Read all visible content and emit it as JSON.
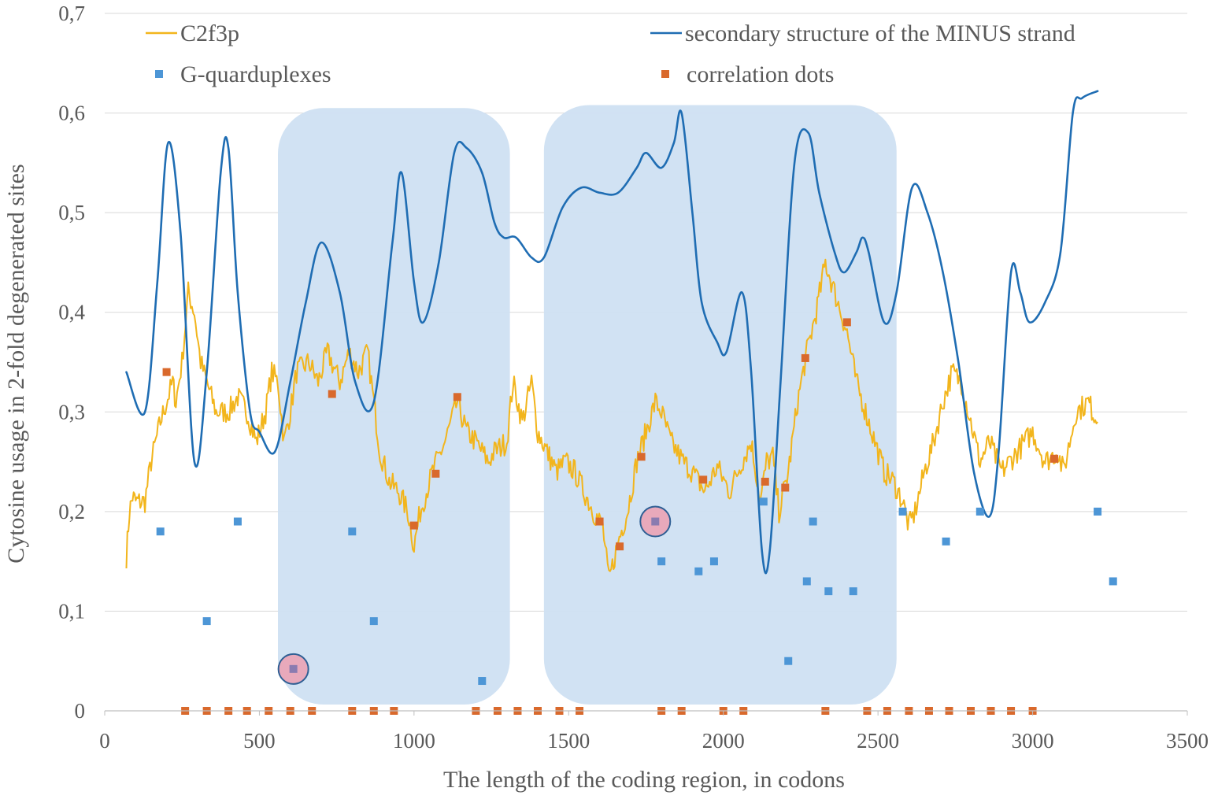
{
  "chart_data": {
    "type": "line",
    "title": "",
    "xlabel": "The length of the coding region, in codons",
    "ylabel": "Cytosine usage in 2-fold degenerated sites",
    "xlim": [
      0,
      3500
    ],
    "ylim": [
      0,
      0.7
    ],
    "x_ticks": [
      0,
      500,
      1000,
      1500,
      2000,
      2500,
      3000,
      3500
    ],
    "x_tick_labels": [
      "0",
      "500",
      "1000",
      "1500",
      "2000",
      "2500",
      "3000",
      "3500"
    ],
    "y_ticks": [
      0,
      0.1,
      0.2,
      0.3,
      0.4,
      0.5,
      0.6,
      0.7
    ],
    "y_tick_labels": [
      "0",
      "0,1",
      "0,2",
      "0,3",
      "0,4",
      "0,5",
      "0,6",
      "0,7"
    ],
    "grid": "horizontal",
    "legend_position": "top",
    "colors": {
      "c2f3p": "#f2b51c",
      "minus_strand": "#1f6db3",
      "gquad": "#4d96d6",
      "corr": "#d9692c",
      "region_fill": "#cfe0f2",
      "highlight_fill": "#e8a9bb",
      "highlight_stroke": "#2f5f94",
      "grid": "#d9d9d9",
      "axis": "#bfbfbf"
    },
    "legend": [
      {
        "key": "c2f3p",
        "label": "C2f3p",
        "style": "line"
      },
      {
        "key": "minus_strand",
        "label": "secondary structure of the MINUS strand",
        "style": "line"
      },
      {
        "key": "gquad",
        "label": "G-quarduplexes",
        "style": "marker"
      },
      {
        "key": "corr",
        "label": "correlation dots",
        "style": "marker"
      }
    ],
    "shaded_regions": [
      {
        "x0": 560,
        "x1": 1310,
        "y0": 0,
        "y1": 0.605
      },
      {
        "x0": 1420,
        "x1": 2560,
        "y0": 0,
        "y1": 0.608
      }
    ],
    "series": [
      {
        "name": "C2f3p",
        "type": "line",
        "noise": 0.012,
        "points": [
          [
            70,
            0.155
          ],
          [
            80,
            0.2
          ],
          [
            90,
            0.215
          ],
          [
            100,
            0.21
          ],
          [
            130,
            0.21
          ],
          [
            150,
            0.25
          ],
          [
            180,
            0.29
          ],
          [
            200,
            0.31
          ],
          [
            220,
            0.33
          ],
          [
            230,
            0.31
          ],
          [
            250,
            0.35
          ],
          [
            270,
            0.42
          ],
          [
            290,
            0.4
          ],
          [
            310,
            0.35
          ],
          [
            330,
            0.33
          ],
          [
            360,
            0.3
          ],
          [
            400,
            0.3
          ],
          [
            430,
            0.315
          ],
          [
            460,
            0.3
          ],
          [
            490,
            0.27
          ],
          [
            520,
            0.3
          ],
          [
            540,
            0.34
          ],
          [
            560,
            0.33
          ],
          [
            580,
            0.27
          ],
          [
            600,
            0.3
          ],
          [
            620,
            0.34
          ],
          [
            660,
            0.35
          ],
          [
            690,
            0.33
          ],
          [
            720,
            0.36
          ],
          [
            760,
            0.33
          ],
          [
            790,
            0.36
          ],
          [
            820,
            0.34
          ],
          [
            850,
            0.36
          ],
          [
            870,
            0.31
          ],
          [
            890,
            0.26
          ],
          [
            920,
            0.23
          ],
          [
            950,
            0.22
          ],
          [
            980,
            0.2
          ],
          [
            1000,
            0.165
          ],
          [
            1020,
            0.2
          ],
          [
            1060,
            0.24
          ],
          [
            1100,
            0.27
          ],
          [
            1140,
            0.31
          ],
          [
            1170,
            0.28
          ],
          [
            1200,
            0.27
          ],
          [
            1240,
            0.25
          ],
          [
            1260,
            0.26
          ],
          [
            1300,
            0.27
          ],
          [
            1320,
            0.33
          ],
          [
            1350,
            0.29
          ],
          [
            1380,
            0.33
          ],
          [
            1400,
            0.28
          ],
          [
            1430,
            0.26
          ],
          [
            1460,
            0.24
          ],
          [
            1490,
            0.25
          ],
          [
            1520,
            0.24
          ],
          [
            1550,
            0.22
          ],
          [
            1580,
            0.2
          ],
          [
            1610,
            0.185
          ],
          [
            1630,
            0.13
          ],
          [
            1660,
            0.17
          ],
          [
            1690,
            0.2
          ],
          [
            1720,
            0.25
          ],
          [
            1750,
            0.28
          ],
          [
            1780,
            0.31
          ],
          [
            1800,
            0.3
          ],
          [
            1830,
            0.27
          ],
          [
            1870,
            0.25
          ],
          [
            1900,
            0.24
          ],
          [
            1940,
            0.22
          ],
          [
            1980,
            0.245
          ],
          [
            2020,
            0.22
          ],
          [
            2060,
            0.25
          ],
          [
            2090,
            0.27
          ],
          [
            2120,
            0.21
          ],
          [
            2140,
            0.25
          ],
          [
            2160,
            0.255
          ],
          [
            2180,
            0.2
          ],
          [
            2210,
            0.24
          ],
          [
            2240,
            0.31
          ],
          [
            2270,
            0.36
          ],
          [
            2300,
            0.4
          ],
          [
            2330,
            0.45
          ],
          [
            2360,
            0.42
          ],
          [
            2400,
            0.38
          ],
          [
            2430,
            0.33
          ],
          [
            2460,
            0.3
          ],
          [
            2490,
            0.27
          ],
          [
            2520,
            0.24
          ],
          [
            2550,
            0.23
          ],
          [
            2580,
            0.21
          ],
          [
            2600,
            0.185
          ],
          [
            2620,
            0.2
          ],
          [
            2650,
            0.24
          ],
          [
            2680,
            0.27
          ],
          [
            2710,
            0.31
          ],
          [
            2740,
            0.34
          ],
          [
            2770,
            0.33
          ],
          [
            2800,
            0.29
          ],
          [
            2830,
            0.25
          ],
          [
            2860,
            0.27
          ],
          [
            2900,
            0.24
          ],
          [
            2950,
            0.26
          ],
          [
            3000,
            0.28
          ],
          [
            3040,
            0.25
          ],
          [
            3080,
            0.26
          ],
          [
            3100,
            0.24
          ],
          [
            3140,
            0.3
          ],
          [
            3180,
            0.31
          ],
          [
            3210,
            0.29
          ]
        ]
      },
      {
        "name": "secondary structure of the MINUS strand",
        "type": "line",
        "points": [
          [
            70,
            0.34
          ],
          [
            130,
            0.3
          ],
          [
            170,
            0.43
          ],
          [
            205,
            0.57
          ],
          [
            245,
            0.48
          ],
          [
            290,
            0.25
          ],
          [
            330,
            0.34
          ],
          [
            375,
            0.54
          ],
          [
            400,
            0.565
          ],
          [
            430,
            0.42
          ],
          [
            470,
            0.3
          ],
          [
            500,
            0.28
          ],
          [
            550,
            0.26
          ],
          [
            600,
            0.33
          ],
          [
            650,
            0.41
          ],
          [
            700,
            0.47
          ],
          [
            760,
            0.42
          ],
          [
            810,
            0.33
          ],
          [
            870,
            0.31
          ],
          [
            930,
            0.47
          ],
          [
            960,
            0.54
          ],
          [
            1000,
            0.43
          ],
          [
            1030,
            0.39
          ],
          [
            1080,
            0.45
          ],
          [
            1130,
            0.56
          ],
          [
            1170,
            0.565
          ],
          [
            1220,
            0.54
          ],
          [
            1260,
            0.49
          ],
          [
            1290,
            0.475
          ],
          [
            1330,
            0.475
          ],
          [
            1380,
            0.455
          ],
          [
            1420,
            0.455
          ],
          [
            1480,
            0.505
          ],
          [
            1540,
            0.525
          ],
          [
            1600,
            0.52
          ],
          [
            1660,
            0.52
          ],
          [
            1720,
            0.545
          ],
          [
            1750,
            0.56
          ],
          [
            1800,
            0.545
          ],
          [
            1840,
            0.57
          ],
          [
            1865,
            0.6
          ],
          [
            1900,
            0.5
          ],
          [
            1930,
            0.41
          ],
          [
            1980,
            0.37
          ],
          [
            2010,
            0.36
          ],
          [
            2060,
            0.42
          ],
          [
            2090,
            0.34
          ],
          [
            2125,
            0.16
          ],
          [
            2150,
            0.16
          ],
          [
            2185,
            0.33
          ],
          [
            2230,
            0.55
          ],
          [
            2275,
            0.58
          ],
          [
            2310,
            0.52
          ],
          [
            2360,
            0.46
          ],
          [
            2390,
            0.44
          ],
          [
            2430,
            0.46
          ],
          [
            2450,
            0.475
          ],
          [
            2470,
            0.46
          ],
          [
            2520,
            0.39
          ],
          [
            2560,
            0.42
          ],
          [
            2610,
            0.525
          ],
          [
            2660,
            0.5
          ],
          [
            2710,
            0.44
          ],
          [
            2760,
            0.35
          ],
          [
            2810,
            0.24
          ],
          [
            2860,
            0.195
          ],
          [
            2890,
            0.26
          ],
          [
            2930,
            0.44
          ],
          [
            2960,
            0.42
          ],
          [
            2990,
            0.39
          ],
          [
            3040,
            0.41
          ],
          [
            3090,
            0.46
          ],
          [
            3130,
            0.6
          ],
          [
            3160,
            0.615
          ],
          [
            3210,
            0.622
          ]
        ]
      },
      {
        "name": "G-quarduplexes",
        "type": "scatter",
        "points": [
          [
            180,
            0.18
          ],
          [
            330,
            0.09
          ],
          [
            430,
            0.19
          ],
          [
            610,
            0.04
          ],
          [
            800,
            0.18
          ],
          [
            870,
            0.09
          ],
          [
            1220,
            0.03
          ],
          [
            1780,
            0.19
          ],
          [
            1800,
            0.15
          ],
          [
            1920,
            0.14
          ],
          [
            1970,
            0.15
          ],
          [
            2130,
            0.21
          ],
          [
            2210,
            0.05
          ],
          [
            2270,
            0.13
          ],
          [
            2290,
            0.19
          ],
          [
            2340,
            0.12
          ],
          [
            2420,
            0.12
          ],
          [
            2580,
            0.2
          ],
          [
            2720,
            0.17
          ],
          [
            2830,
            0.2
          ],
          [
            3210,
            0.2
          ],
          [
            3260,
            0.13
          ]
        ]
      },
      {
        "name": "correlation dots",
        "type": "scatter",
        "points": [
          [
            200,
            0.34
          ],
          [
            260,
            0
          ],
          [
            330,
            0
          ],
          [
            400,
            0
          ],
          [
            460,
            0
          ],
          [
            530,
            0
          ],
          [
            600,
            0
          ],
          [
            670,
            0
          ],
          [
            735,
            0.318
          ],
          [
            800,
            0
          ],
          [
            870,
            0
          ],
          [
            935,
            0
          ],
          [
            1000,
            0.186
          ],
          [
            1070,
            0.238
          ],
          [
            1140,
            0.315
          ],
          [
            1200,
            0
          ],
          [
            1270,
            0
          ],
          [
            1335,
            0
          ],
          [
            1400,
            0
          ],
          [
            1470,
            0
          ],
          [
            1535,
            0
          ],
          [
            1600,
            0.19
          ],
          [
            1665,
            0.165
          ],
          [
            1735,
            0.255
          ],
          [
            1780,
            0.19
          ],
          [
            1800,
            0
          ],
          [
            1865,
            0
          ],
          [
            1935,
            0.232
          ],
          [
            2000,
            0
          ],
          [
            2065,
            0
          ],
          [
            2135,
            0.23
          ],
          [
            2200,
            0.224
          ],
          [
            2265,
            0.354
          ],
          [
            2330,
            0
          ],
          [
            2400,
            0.39
          ],
          [
            2465,
            0
          ],
          [
            2530,
            0
          ],
          [
            2600,
            0
          ],
          [
            2665,
            0
          ],
          [
            2730,
            0
          ],
          [
            2800,
            0
          ],
          [
            2865,
            0
          ],
          [
            2930,
            0
          ],
          [
            3000,
            0
          ],
          [
            3070,
            0.253
          ]
        ]
      }
    ],
    "highlighted_points": [
      [
        610,
        0.042
      ],
      [
        1780,
        0.19
      ]
    ]
  }
}
